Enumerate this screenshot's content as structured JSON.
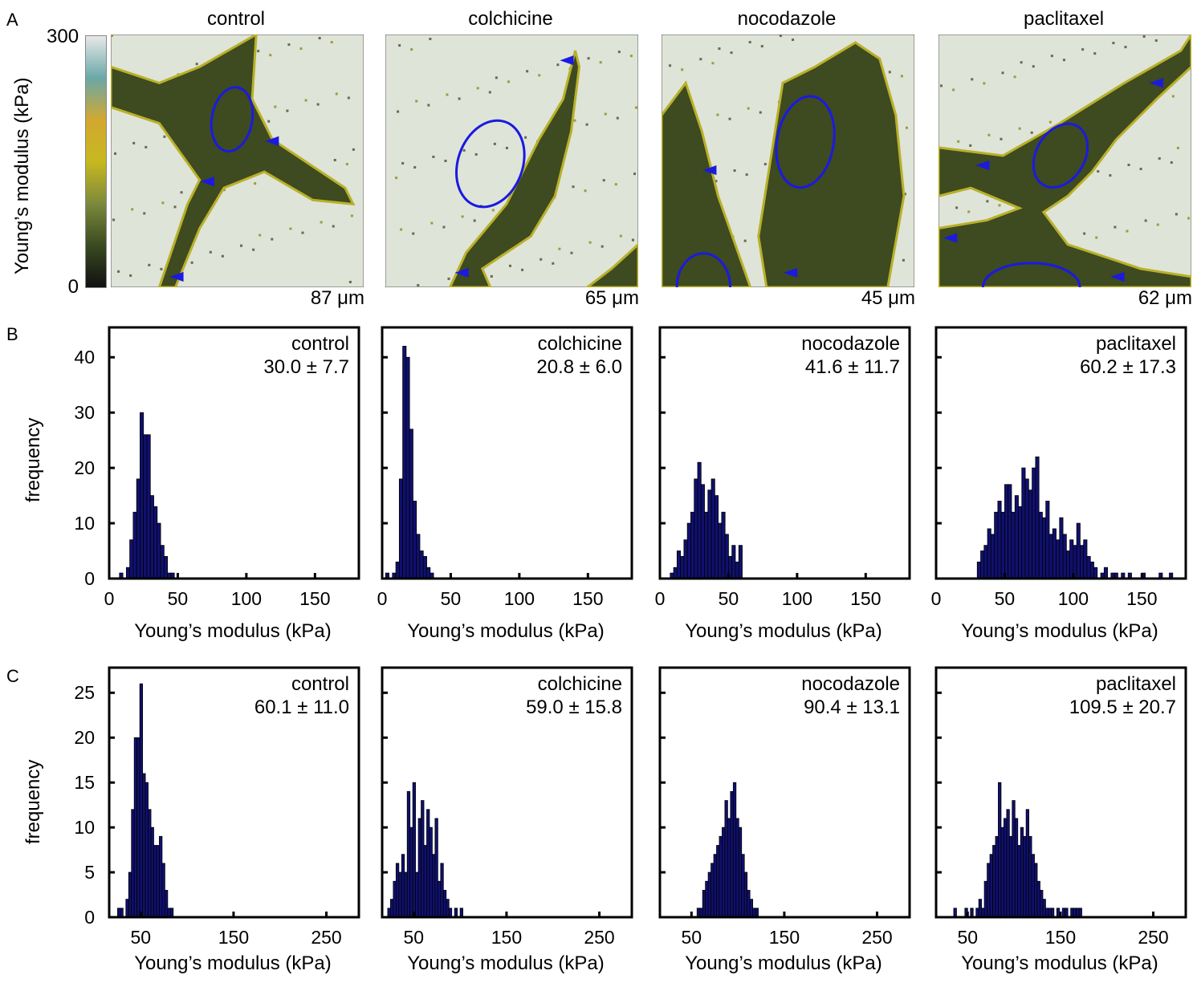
{
  "panel_labels": [
    "A",
    "B",
    "C"
  ],
  "row_a": {
    "colorbar": {
      "max_label": "300",
      "min_label": "0",
      "label": "Young’s modulus (kPa)",
      "colors": [
        "#111111",
        "#3a4a20",
        "#7c8a3c",
        "#c8b820",
        "#d2a830",
        "#6aa8a8",
        "#e8e8e8"
      ]
    },
    "panels": [
      {
        "title": "control",
        "scale": "87 μm"
      },
      {
        "title": "colchicine",
        "scale": "65 μm"
      },
      {
        "title": "nocodazole",
        "scale": "45 μm"
      },
      {
        "title": "paclitaxel",
        "scale": "62 μm"
      }
    ],
    "colors": {
      "background": "#dfe4d8",
      "cell": "#3e4a1f",
      "highlight": "#b8b02a",
      "marker": "#1a1ae0"
    }
  },
  "row_b": {
    "ylabel": "frequency",
    "xlabel": "Young’s modulus (kPa)"
  },
  "row_c": {
    "ylabel": "frequency",
    "xlabel": "Young’s modulus (kPa)"
  },
  "chart_data": [
    {
      "type": "bar",
      "row": "B",
      "name": "control",
      "stat": "30.0 ± 7.7",
      "bin_start": 7.5,
      "bin_width": 2.5,
      "values": [
        1,
        0,
        2,
        7,
        12,
        18,
        30,
        26,
        26,
        15,
        13,
        10,
        6,
        4,
        1,
        1
      ],
      "xlim": [
        0,
        182
      ],
      "ylim": [
        0,
        45.4
      ],
      "xticks": [
        0,
        50,
        100,
        150
      ],
      "yticks": [
        0,
        10,
        20,
        30,
        40
      ],
      "xlabel": "Young’s modulus (kPa)",
      "ylabel": "frequency"
    },
    {
      "type": "bar",
      "row": "B",
      "name": "colchicine",
      "stat": "20.8 ± 6.0",
      "bin_start": 2.5,
      "bin_width": 2.5,
      "values": [
        1,
        0,
        1,
        3,
        18,
        42,
        40,
        27,
        14,
        8,
        5,
        4,
        2,
        1
      ],
      "xlim": [
        0,
        182
      ],
      "ylim": [
        0,
        45.4
      ],
      "xticks": [
        0,
        50,
        100,
        150
      ],
      "yticks": [
        0,
        10,
        20,
        30,
        40
      ],
      "xlabel": "Young’s modulus (kPa)",
      "ylabel": "frequency"
    },
    {
      "type": "bar",
      "row": "B",
      "name": "nocodazole",
      "stat": "41.6 ± 11.7",
      "bin_start": 7.5,
      "bin_width": 2.5,
      "values": [
        1,
        2,
        5,
        4,
        7,
        10,
        12,
        18,
        21,
        17,
        12,
        16,
        18,
        15,
        10,
        12,
        8,
        4,
        6,
        3,
        6
      ],
      "xlim": [
        0,
        182
      ],
      "ylim": [
        0,
        45.4
      ],
      "xticks": [
        0,
        50,
        100,
        150
      ],
      "yticks": [
        0,
        10,
        20,
        30,
        40
      ],
      "xlabel": "Young’s modulus (kPa)",
      "ylabel": "frequency"
    },
    {
      "type": "bar",
      "row": "B",
      "name": "paclitaxel",
      "stat": "60.2 ± 17.3",
      "bin_start": 30,
      "bin_width": 2.5,
      "values": [
        3,
        5,
        6,
        9,
        8,
        12,
        14,
        12,
        17,
        17,
        12,
        15,
        13,
        20,
        18,
        16,
        20,
        22,
        12,
        11,
        14,
        8,
        9,
        7,
        11,
        8,
        5,
        7,
        6,
        10,
        6,
        7,
        4,
        3,
        2,
        0,
        1,
        2,
        0,
        1,
        1,
        0,
        1,
        0,
        1,
        0,
        0,
        0,
        1,
        0,
        0,
        0,
        0,
        1,
        0,
        0,
        1
      ],
      "xlim": [
        0,
        182
      ],
      "ylim": [
        0,
        45.4
      ],
      "xticks": [
        0,
        50,
        100,
        150
      ],
      "yticks": [
        0,
        10,
        20,
        30,
        40
      ],
      "xlabel": "Young’s modulus (kPa)",
      "ylabel": "frequency"
    },
    {
      "type": "bar",
      "row": "C",
      "name": "control",
      "stat": "60.1 ± 11.0",
      "bin_start": 25,
      "bin_width": 3,
      "values": [
        1,
        1,
        0,
        2,
        5,
        12,
        20,
        20,
        26,
        16,
        15,
        12,
        10,
        8,
        8,
        9,
        6,
        3,
        1,
        1
      ],
      "xlim": [
        16,
        285
      ],
      "ylim": [
        0,
        27.8
      ],
      "xticks": [
        50,
        150,
        250
      ],
      "yticks": [
        0,
        5,
        10,
        15,
        20,
        25
      ],
      "xlabel": "Young’s modulus (kPa)",
      "ylabel": "frequency"
    },
    {
      "type": "bar",
      "row": "C",
      "name": "colchicine",
      "stat": "59.0 ± 15.8",
      "bin_start": 22,
      "bin_width": 3,
      "values": [
        1,
        2,
        4,
        6,
        5,
        7,
        5,
        14,
        10,
        15,
        5,
        11,
        13,
        8,
        12,
        10,
        7,
        11,
        4,
        6,
        3,
        2,
        1,
        0,
        1,
        0,
        1
      ],
      "xlim": [
        16,
        285
      ],
      "ylim": [
        0,
        27.8
      ],
      "xticks": [
        50,
        150,
        250
      ],
      "yticks": [
        0,
        5,
        10,
        15,
        20,
        25
      ],
      "xlabel": "Young’s modulus (kPa)",
      "ylabel": "frequency"
    },
    {
      "type": "bar",
      "row": "C",
      "name": "nocodazole",
      "stat": "90.4 ± 13.1",
      "bin_start": 56,
      "bin_width": 3,
      "values": [
        1,
        1,
        3,
        4,
        5,
        6,
        7,
        8,
        9,
        10,
        13,
        11,
        14,
        15,
        11,
        10,
        7,
        5,
        3,
        2,
        1,
        1
      ],
      "xlim": [
        16,
        285
      ],
      "ylim": [
        0,
        27.8
      ],
      "xticks": [
        50,
        150,
        250
      ],
      "yticks": [
        0,
        5,
        10,
        15,
        20,
        25
      ],
      "xlabel": "Young’s modulus (kPa)",
      "ylabel": "frequency"
    },
    {
      "type": "bar",
      "row": "C",
      "name": "paclitaxel",
      "stat": "109.5 ± 20.7",
      "bin_start": 35,
      "bin_width": 3,
      "values": [
        1,
        0,
        0,
        0,
        1,
        0,
        1,
        0,
        1,
        2,
        1,
        4,
        6,
        7,
        8,
        9,
        15,
        10,
        11,
        12,
        9,
        13,
        11,
        8,
        10,
        9,
        12,
        9,
        7,
        6,
        4,
        3,
        2,
        1,
        1,
        1,
        0,
        1,
        0,
        1,
        1,
        0,
        1,
        1,
        1,
        1
      ],
      "xlim": [
        16,
        285
      ],
      "ylim": [
        0,
        27.8
      ],
      "xticks": [
        50,
        150,
        250
      ],
      "yticks": [
        0,
        5,
        10,
        15,
        20,
        25
      ],
      "xlabel": "Young’s modulus (kPa)",
      "ylabel": "frequency"
    }
  ]
}
